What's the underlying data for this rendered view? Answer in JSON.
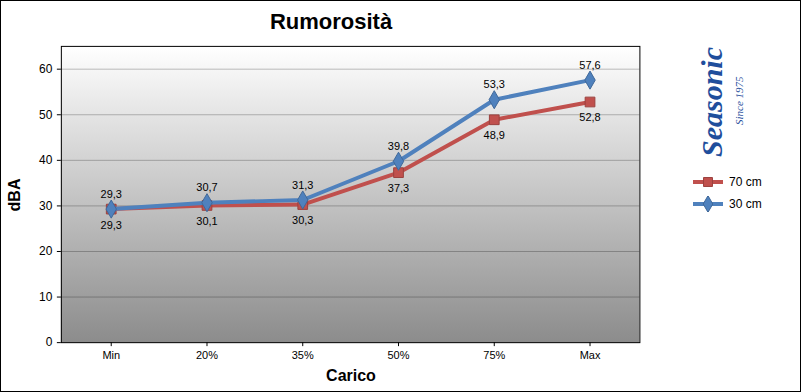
{
  "chart_data": {
    "type": "line",
    "title": "Rumorosità",
    "x_label": "Carico",
    "y_label": "dBA",
    "categories": [
      "Min",
      "20%",
      "35%",
      "50%",
      "75%",
      "Max"
    ],
    "series": [
      {
        "name": "70 cm",
        "color": "#c0504d",
        "marker": "square",
        "values": [
          29.3,
          30.1,
          30.3,
          37.3,
          48.9,
          52.8
        ],
        "value_labels": [
          "29,3",
          "30,1",
          "30,3",
          "37,3",
          "48,9",
          "52,8"
        ]
      },
      {
        "name": "30 cm",
        "color": "#4f81bd",
        "marker": "diamond",
        "values": [
          29.3,
          30.7,
          31.3,
          39.8,
          53.3,
          57.6
        ],
        "value_labels": [
          "29,3",
          "30,7",
          "31,3",
          "39,8",
          "53,3",
          "57,6"
        ]
      }
    ],
    "ylim": [
      0,
      65
    ],
    "yticks": [
      0,
      10,
      20,
      30,
      40,
      50,
      60
    ],
    "grid": true,
    "legend": "right",
    "data_labels": true
  },
  "logo": {
    "name": "Seasonic",
    "tagline": "Since 1975"
  }
}
